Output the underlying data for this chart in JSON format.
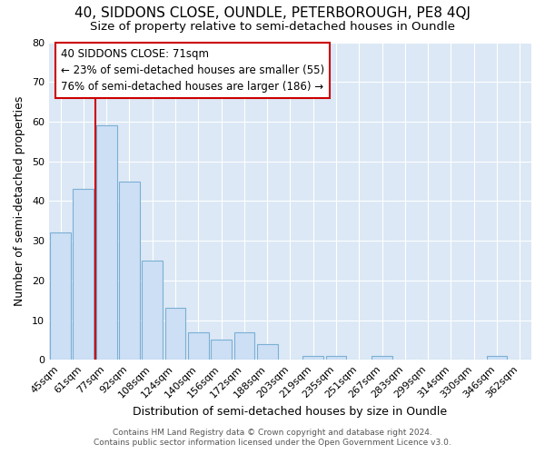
{
  "title": "40, SIDDONS CLOSE, OUNDLE, PETERBOROUGH, PE8 4QJ",
  "subtitle": "Size of property relative to semi-detached houses in Oundle",
  "xlabel": "Distribution of semi-detached houses by size in Oundle",
  "ylabel": "Number of semi-detached properties",
  "categories": [
    "45sqm",
    "61sqm",
    "77sqm",
    "92sqm",
    "108sqm",
    "124sqm",
    "140sqm",
    "156sqm",
    "172sqm",
    "188sqm",
    "203sqm",
    "219sqm",
    "235sqm",
    "251sqm",
    "267sqm",
    "283sqm",
    "299sqm",
    "314sqm",
    "330sqm",
    "346sqm",
    "362sqm"
  ],
  "values": [
    32,
    43,
    59,
    45,
    25,
    13,
    7,
    5,
    7,
    4,
    0,
    1,
    1,
    0,
    1,
    0,
    0,
    0,
    0,
    1,
    0
  ],
  "bar_color": "#ccdff5",
  "bar_edgecolor": "#7bafd4",
  "vline_color": "#cc0000",
  "vline_x": 1.5,
  "annotation_line1": "40 SIDDONS CLOSE: 71sqm",
  "annotation_line2": "← 23% of semi-detached houses are smaller (55)",
  "annotation_line3": "76% of semi-detached houses are larger (186) →",
  "annotation_box_facecolor": "#ffffff",
  "annotation_box_edgecolor": "#cc0000",
  "ylim": [
    0,
    80
  ],
  "yticks": [
    0,
    10,
    20,
    30,
    40,
    50,
    60,
    70,
    80
  ],
  "fig_bg_color": "#ffffff",
  "plot_bg_color": "#dce8f5",
  "grid_color": "#ffffff",
  "footer_line1": "Contains HM Land Registry data © Crown copyright and database right 2024.",
  "footer_line2": "Contains public sector information licensed under the Open Government Licence v3.0.",
  "title_fontsize": 11,
  "subtitle_fontsize": 9.5,
  "axis_label_fontsize": 9,
  "tick_fontsize": 8,
  "annotation_fontsize": 8.5,
  "footer_fontsize": 6.5
}
